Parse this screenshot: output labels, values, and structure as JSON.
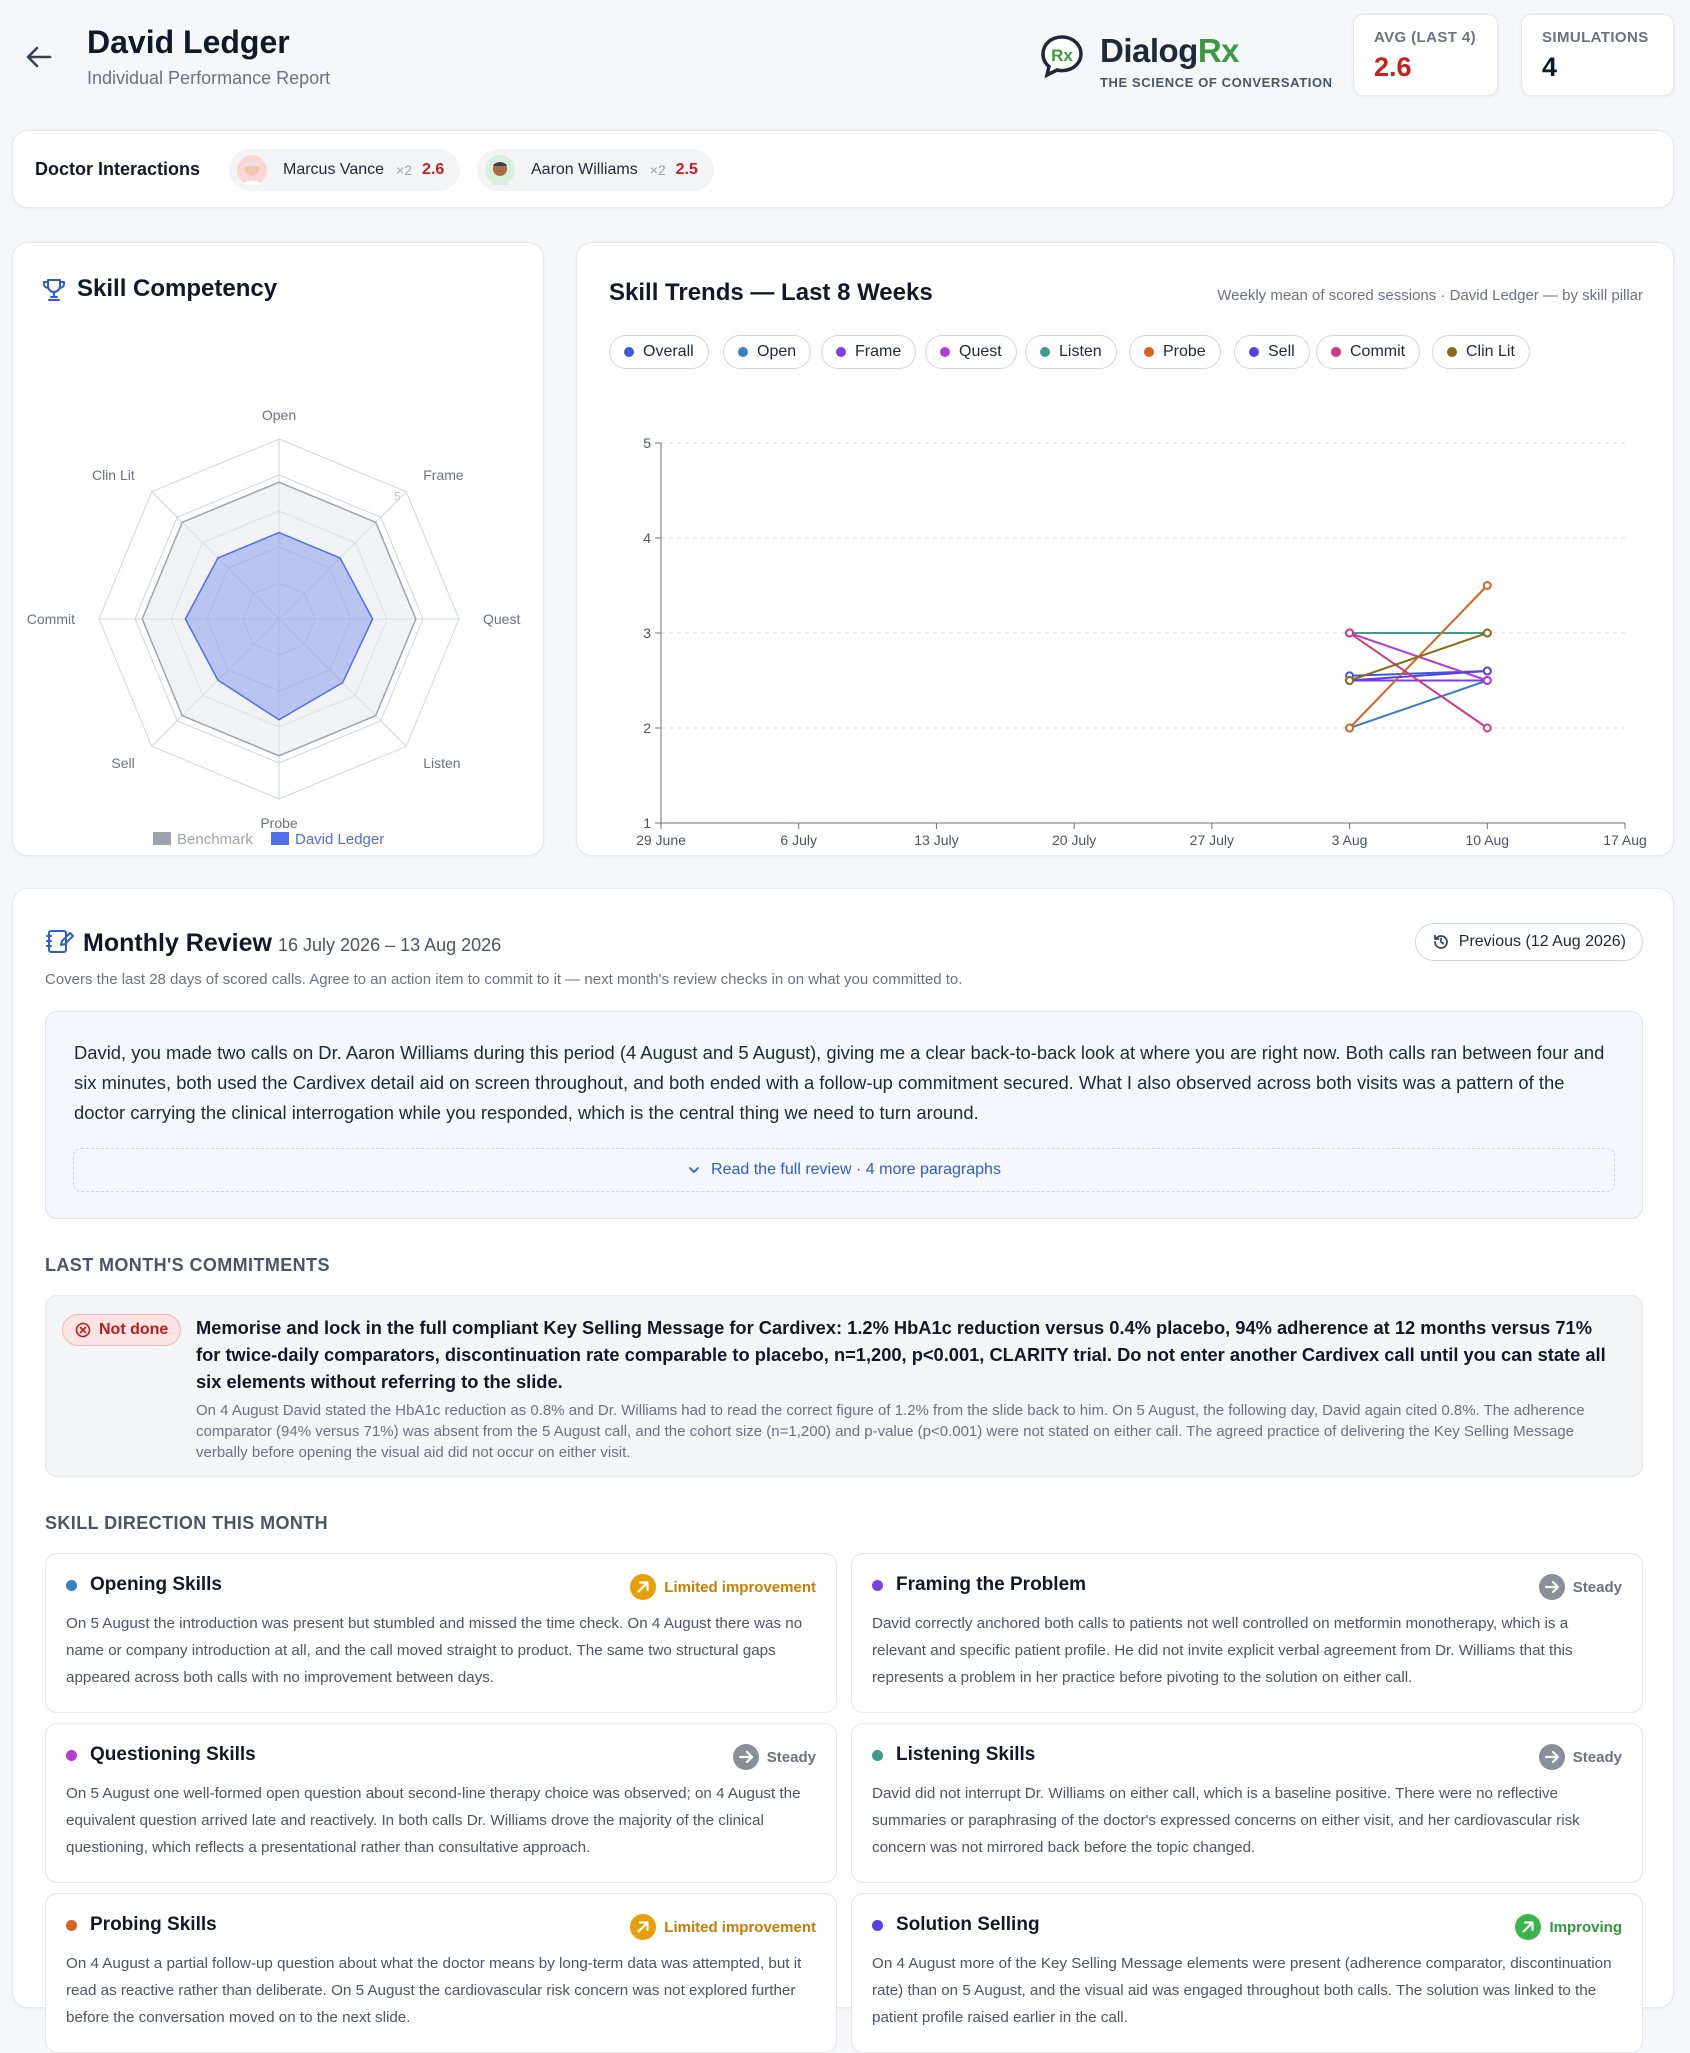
{
  "header": {
    "title": "David Ledger",
    "subtitle": "Individual Performance Report",
    "logo": {
      "word_main": "Dialog",
      "word_accent": "Rx",
      "tagline": "THE SCIENCE OF CONVERSATION"
    },
    "stats": [
      {
        "label": "AVG (LAST 4)",
        "value": "2.6",
        "color": "#c81e1e"
      },
      {
        "label": "SIMULATIONS",
        "value": "4",
        "color": "#111827"
      }
    ]
  },
  "doctors": {
    "title": "Doctor Interactions",
    "items": [
      {
        "name": "Marcus Vance",
        "count": "×2",
        "score": "2.6"
      },
      {
        "name": "Aaron Williams",
        "count": "×2",
        "score": "2.5"
      }
    ]
  },
  "skill_competency": {
    "title": "Skill Competency",
    "axes": [
      "Open",
      "Frame",
      "Quest",
      "Listen",
      "Probe",
      "Sell",
      "Commit",
      "Clin Lit"
    ],
    "scale_max": 5,
    "ring_label": "5",
    "benchmark": [
      3.8,
      3.8,
      3.8,
      3.8,
      3.8,
      3.8,
      3.8,
      3.8
    ],
    "user": [
      2.4,
      2.4,
      2.6,
      2.5,
      2.8,
      2.4,
      2.6,
      2.4
    ],
    "legend": {
      "benchmark": "Benchmark",
      "user": "David Ledger"
    },
    "colors": {
      "benchmark": "#9ca3af",
      "user": "#4f6fe8"
    }
  },
  "chart_data": {
    "type": "line",
    "title": "Skill Trends — Last 8 Weeks",
    "subtitle": "Weekly mean of scored sessions · David Ledger — by skill pillar",
    "x": [
      "29 June",
      "6 July",
      "13 July",
      "20 July",
      "27 July",
      "3 Aug",
      "10 Aug",
      "17 Aug"
    ],
    "ylim": [
      1,
      5
    ],
    "yticks": [
      1,
      2,
      3,
      4,
      5
    ],
    "grid": true,
    "series": [
      {
        "name": "Overall",
        "color": "#3b5bdb",
        "values": [
          null,
          null,
          null,
          null,
          null,
          2.55,
          2.6,
          null
        ]
      },
      {
        "name": "Open",
        "color": "#3a7fc1",
        "values": [
          null,
          null,
          null,
          null,
          null,
          2.0,
          2.5,
          null
        ]
      },
      {
        "name": "Frame",
        "color": "#7b3fe4",
        "values": [
          null,
          null,
          null,
          null,
          null,
          2.5,
          2.5,
          null
        ]
      },
      {
        "name": "Quest",
        "color": "#b43cd1",
        "values": [
          null,
          null,
          null,
          null,
          null,
          3.0,
          2.5,
          null
        ]
      },
      {
        "name": "Listen",
        "color": "#3f9b8a",
        "values": [
          null,
          null,
          null,
          null,
          null,
          3.0,
          3.0,
          null
        ]
      },
      {
        "name": "Probe",
        "color": "#d9631e",
        "values": [
          null,
          null,
          null,
          null,
          null,
          2.0,
          3.5,
          null
        ]
      },
      {
        "name": "Sell",
        "color": "#5b3fe0",
        "values": [
          null,
          null,
          null,
          null,
          null,
          2.5,
          2.6,
          null
        ]
      },
      {
        "name": "Commit",
        "color": "#cf3a7e",
        "values": [
          null,
          null,
          null,
          null,
          null,
          3.0,
          2.0,
          null
        ]
      },
      {
        "name": "Clin Lit",
        "color": "#8a6a14",
        "values": [
          null,
          null,
          null,
          null,
          null,
          2.5,
          3.0,
          null
        ]
      }
    ]
  },
  "monthly": {
    "title": "Monthly Review",
    "range": "16 July 2026 – 13 Aug 2026",
    "previous_label": "Previous (12 Aug 2026)",
    "description": "Covers the last 28 days of scored calls. Agree to an action item to commit to it — next month's review checks in on what you committed to.",
    "review_text": "David, you made two calls on Dr. Aaron Williams during this period (4 August and 5 August), giving me a clear back-to-back look at where you are right now. Both calls ran between four and six minutes, both used the Cardivex detail aid on screen throughout, and both ended with a follow-up commitment secured. What I also observed across both visits was a pattern of the doctor carrying the clinical interrogation while you responded, which is the central thing we need to turn around.",
    "read_more": "Read the full review · 4 more paragraphs"
  },
  "commitments": {
    "heading": "LAST MONTH'S COMMITMENTS",
    "status": "Not done",
    "text": "Memorise and lock in the full compliant Key Selling Message for Cardivex: 1.2% HbA1c reduction versus 0.4% placebo, 94% adherence at 12 months versus 71% for twice-daily comparators, discontinuation rate comparable to placebo, n=1,200, p<0.001, CLARITY trial. Do not enter another Cardivex call until you can state all six elements without referring to the slide.",
    "note": "On 4 August David stated the HbA1c reduction as 0.8% and Dr. Williams had to read the correct figure of 1.2% from the slide back to him. On 5 August, the following day, David again cited 0.8%. The adherence comparator (94% versus 71%) was absent from the 5 August call, and the cohort size (n=1,200) and p-value (p<0.001) were not stated on either call. The agreed practice of delivering the Key Selling Message verbally before opening the visual aid did not occur on either visit."
  },
  "directions": {
    "heading": "SKILL DIRECTION THIS MONTH",
    "items": [
      {
        "title": "Opening Skills",
        "dot": "#3a7fc1",
        "status": "Limited improvement",
        "kind": "limited",
        "text": "On 5 August the introduction was present but stumbled and missed the time check. On 4 August there was no name or company introduction at all, and the call moved straight to product. The same two structural gaps appeared across both calls with no improvement between days."
      },
      {
        "title": "Framing the Problem",
        "dot": "#7b3fe4",
        "status": "Steady",
        "kind": "steady",
        "text": "David correctly anchored both calls to patients not well controlled on metformin monotherapy, which is a relevant and specific patient profile. He did not invite explicit verbal agreement from Dr. Williams that this represents a problem in her practice before pivoting to the solution on either call."
      },
      {
        "title": "Questioning Skills",
        "dot": "#b43cd1",
        "status": "Steady",
        "kind": "steady",
        "text": "On 5 August one well-formed open question about second-line therapy choice was observed; on 4 August the equivalent question arrived late and reactively. In both calls Dr. Williams drove the majority of the clinical questioning, which reflects a presentational rather than consultative approach."
      },
      {
        "title": "Listening Skills",
        "dot": "#3f9b8a",
        "status": "Steady",
        "kind": "steady",
        "text": "David did not interrupt Dr. Williams on either call, which is a baseline positive. There were no reflective summaries or paraphrasing of the doctor's expressed concerns on either visit, and her cardiovascular risk concern was not mirrored back before the topic changed."
      },
      {
        "title": "Probing Skills",
        "dot": "#d9631e",
        "status": "Limited improvement",
        "kind": "limited",
        "text": "On 4 August a partial follow-up question about what the doctor means by long-term data was attempted, but it read as reactive rather than deliberate. On 5 August the cardiovascular risk concern was not explored further before the conversation moved on to the next slide."
      },
      {
        "title": "Solution Selling",
        "dot": "#5b3fe0",
        "status": "Improving",
        "kind": "improving",
        "text": "On 4 August more of the Key Selling Message elements were present (adherence comparator, discontinuation rate) than on 5 August, and the visual aid was engaged throughout both calls. The solution was linked to the patient profile raised earlier in the call."
      }
    ],
    "badge_colors": {
      "limited": "#e6a00c",
      "steady": "#8b8f99",
      "improving": "#3bb24a"
    },
    "badge_text_colors": {
      "limited": "#c77d00",
      "steady": "#6b7280",
      "improving": "#2f9a3c"
    }
  }
}
